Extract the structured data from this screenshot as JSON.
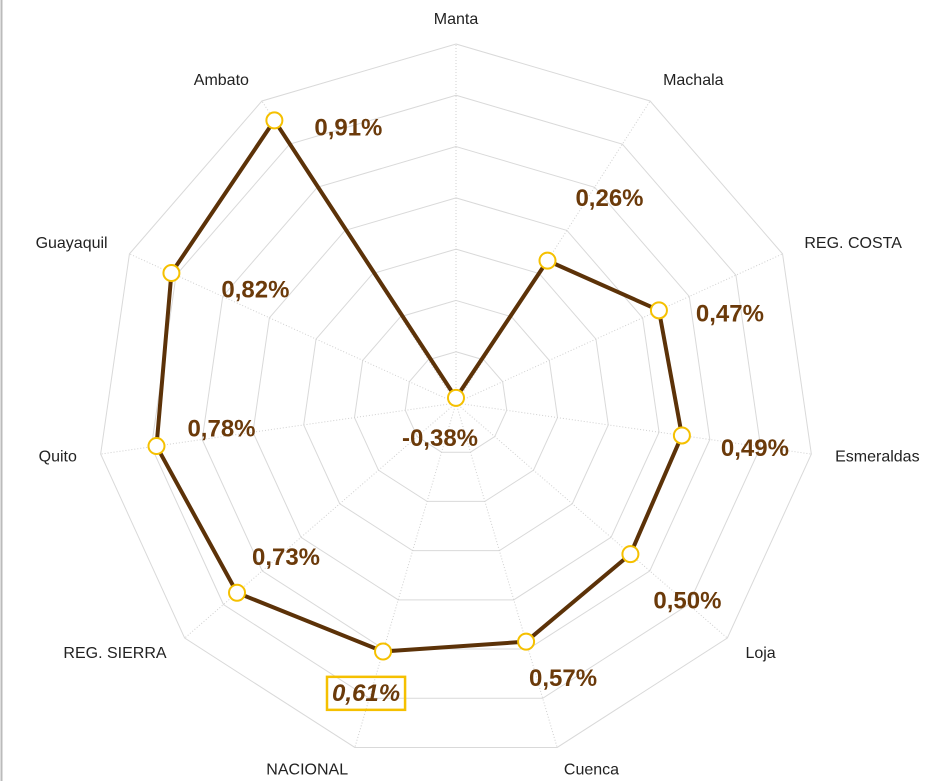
{
  "chart_data": {
    "type": "radar",
    "categories": [
      "Manta",
      "Machala",
      "REG. COSTA",
      "Esmeraldas",
      "Loja",
      "Cuenca",
      "NACIONAL",
      "REG. SIERRA",
      "Quito",
      "Guayaquil",
      "Ambato"
    ],
    "values": [
      -0.38,
      0.26,
      0.47,
      0.49,
      0.5,
      0.57,
      0.61,
      0.73,
      0.78,
      0.82,
      0.91
    ],
    "value_labels": [
      "-0,38%",
      "0,26%",
      "0,47%",
      "0,49%",
      "0,50%",
      "0,57%",
      "0,61%",
      "0,73%",
      "0,78%",
      "0,82%",
      "0,91%"
    ],
    "color": "#5c3208",
    "marker_color": "#f5c000",
    "ylim": [
      -0.4,
      1.0
    ],
    "yticks": [
      -0.4,
      -0.2,
      0,
      0.2,
      0.4,
      0.6,
      0.8,
      1.0
    ],
    "grid": true
  }
}
